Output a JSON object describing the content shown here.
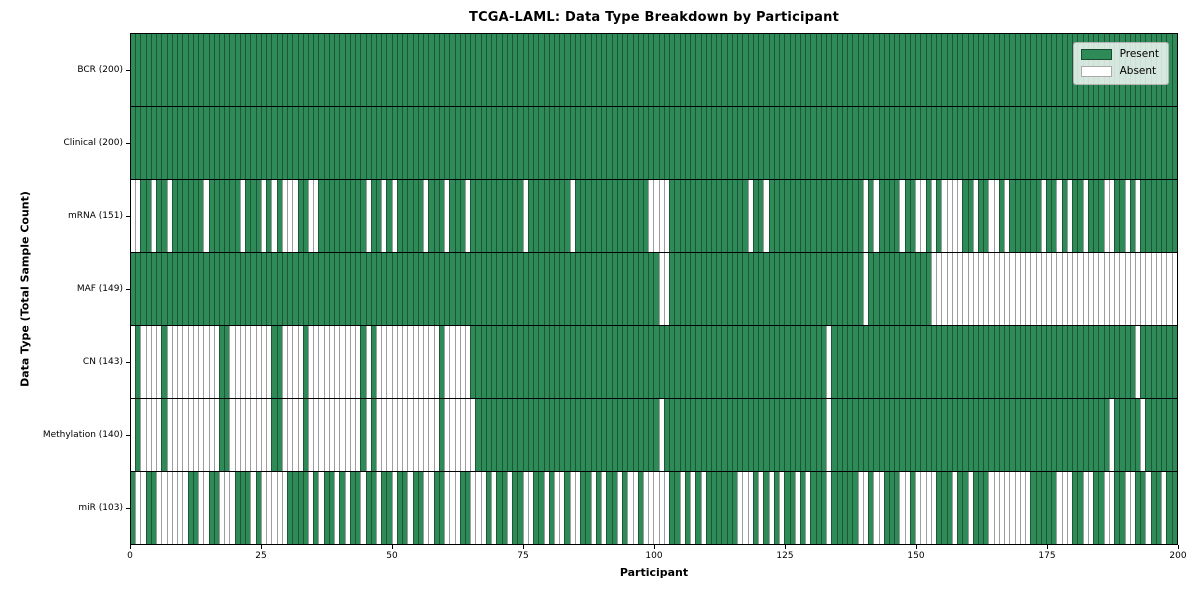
{
  "chart_data": {
    "type": "heatmap",
    "title": "TCGA-LAML: Data Type Breakdown by Participant",
    "xlabel": "Participant",
    "ylabel": "Data Type (Total Sample Count)",
    "x_ticks": [
      0,
      25,
      50,
      75,
      100,
      125,
      150,
      175,
      200
    ],
    "x_range": [
      0,
      200
    ],
    "n_participants": 200,
    "grid": false,
    "legend": {
      "position": "upper right",
      "entries": [
        {
          "label": "Present",
          "color": "#2e8b57"
        },
        {
          "label": "Absent",
          "color": "#ffffff"
        }
      ]
    },
    "colors": {
      "present": "#2e8b57",
      "absent": "#ffffff",
      "cell_edge": "rgba(0,0,0,0.38)",
      "row_separator": "#000000"
    },
    "rows": [
      {
        "label": "BCR (200)",
        "data_type": "BCR",
        "present_count": 200,
        "presence": "11111111111111111111111111111111111111111111111111111111111111111111111111111111111111111111111111111111111111111111111111111111111111111111111111111111111111111111111111111111111111111111111111111111"
      },
      {
        "label": "Clinical (200)",
        "data_type": "Clinical",
        "present_count": 200,
        "presence": "11111111111111111111111111111111111111111111111111111111111111111111111111111111111111111111111111111111111111111111111111111111111111111111111111111111111111111111111111111111111111111111111111111111"
      },
      {
        "label": "mRNA (151)",
        "data_type": "mRNA",
        "present_count": 151,
        "presence": "00110110111111011111101110101000110011111111101101011111011101110111111111101111111101111111111111100001111111111111110110111111111111111111010111101100101000011011001011111101101011011100110101111111"
      },
      {
        "label": "MAF (149)",
        "data_type": "MAF",
        "present_count": 149,
        "presence": "11111111111111111111111111111111111111111111111111111111111111111111111111111111111111111111111111111001111111111111111111111111111111111111011111111111100000000000000000000000000000000000000000000000"
      },
      {
        "label": "CN (143)",
        "data_type": "CN",
        "present_count": 143,
        "presence": "01000010000000000110000000011000010000000000101000000000000100000111111111111111111111111111111111111111111111111111111111111111111110111111111111111111111111111111111111111111111111111111111101111111111"
      },
      {
        "label": "Methylation (140)",
        "data_type": "Methylation",
        "present_count": 140,
        "presence": "01000010000000000110000000011000010000000000101000000000000100000011111111111111111111111111111111111011111111111111111111111111111110111111111111111111111111111111111111111111111111111110111110111111111"
      },
      {
        "label": "miR (103)",
        "data_type": "miR",
        "present_count": 103,
        "presence": "10011000000110011000111010000011110101101011011011011011001100011000101101100110100100110101101001000001101010111111000101010110101110111110010011100100001110110111000000001111100011001100110011011011"
      }
    ]
  }
}
